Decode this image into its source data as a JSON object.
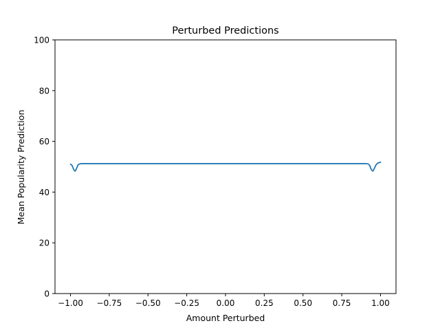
{
  "chart_data": {
    "type": "line",
    "title": "Perturbed Predictions",
    "xlabel": "Amount Perturbed",
    "ylabel": "Mean Popularity Prediction",
    "xlim": [
      -1.1,
      1.1
    ],
    "ylim": [
      0,
      100
    ],
    "xticks": [
      -1.0,
      -0.75,
      -0.5,
      -0.25,
      0.0,
      0.25,
      0.5,
      0.75,
      1.0
    ],
    "xtick_labels": [
      "−1.00",
      "−0.75",
      "−0.50",
      "−0.25",
      "0.00",
      "0.25",
      "0.50",
      "0.75",
      "1.00"
    ],
    "yticks": [
      0,
      20,
      40,
      60,
      80,
      100
    ],
    "ytick_labels": [
      "0",
      "20",
      "40",
      "60",
      "80",
      "100"
    ],
    "grid": false,
    "legend": "none",
    "series": [
      {
        "color": "#1f77b4",
        "x": [
          -1.0,
          -0.99,
          -0.98,
          -0.97,
          -0.96,
          -0.95,
          -0.94,
          -0.93,
          -0.9,
          -0.8,
          -0.6,
          -0.4,
          -0.2,
          0.0,
          0.2,
          0.4,
          0.6,
          0.8,
          0.9,
          0.92,
          0.93,
          0.94,
          0.95,
          0.96,
          0.97,
          0.98,
          0.99,
          1.0
        ],
        "y": [
          51.0,
          50.5,
          49.0,
          48.3,
          49.5,
          50.8,
          51.1,
          51.2,
          51.2,
          51.2,
          51.2,
          51.2,
          51.2,
          51.2,
          51.2,
          51.2,
          51.2,
          51.2,
          51.2,
          51.1,
          50.5,
          49.0,
          48.3,
          49.3,
          50.6,
          51.3,
          51.6,
          51.8
        ]
      }
    ]
  }
}
